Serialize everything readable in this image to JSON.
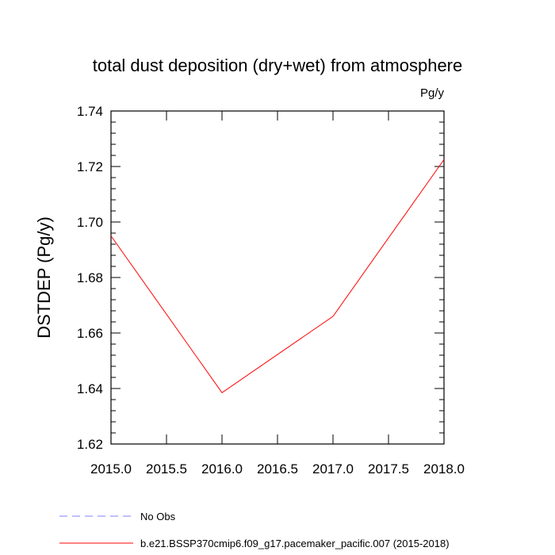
{
  "chart_data": {
    "type": "line",
    "title": "total dust deposition (dry+wet) from atmosphere",
    "units_label": "Pg/y",
    "ylabel": "DSTDEP  (Pg/y)",
    "xlabel": "",
    "xlim": [
      2015.0,
      2018.0
    ],
    "ylim": [
      1.62,
      1.74
    ],
    "x_ticks": [
      "2015.0",
      "2015.5",
      "2016.0",
      "2016.5",
      "2017.0",
      "2017.5",
      "2018.0"
    ],
    "y_ticks": [
      "1.62",
      "1.64",
      "1.66",
      "1.68",
      "1.70",
      "1.72",
      "1.74"
    ],
    "grid": false,
    "legend_position": "bottom",
    "series": [
      {
        "name": "No Obs",
        "color": "#8080ff",
        "style": "dashed",
        "x": [],
        "y": []
      },
      {
        "name": "b.e21.BSSP370cmip6.f09_g17.pacemaker_pacific.007 (2015-2018)",
        "color": "#ff0000",
        "style": "solid",
        "x": [
          2015.0,
          2016.0,
          2017.0,
          2018.0
        ],
        "y": [
          1.695,
          1.6385,
          1.666,
          1.7225
        ]
      }
    ]
  }
}
